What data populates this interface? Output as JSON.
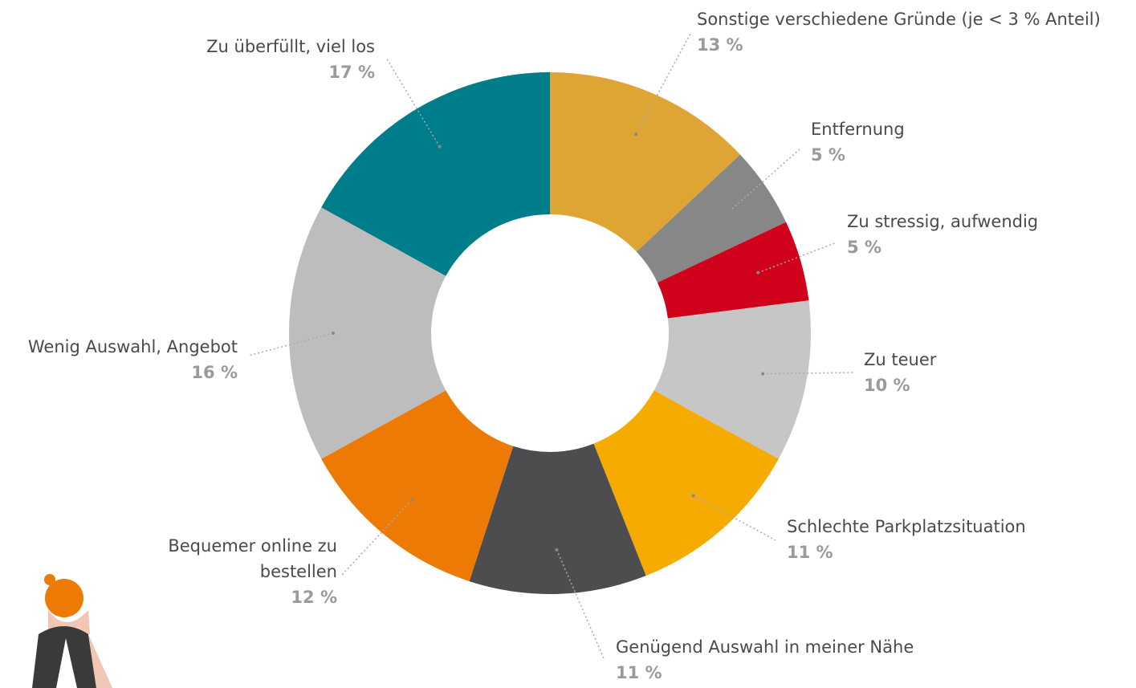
{
  "chart_data": {
    "type": "donut",
    "categories": [
      "Sonstige verschiedene Gründe (je < 3 % Anteil)",
      "Entfernung",
      "Zu stressig, aufwendig",
      "Zu teuer",
      "Schlechte Parkplatzsituation",
      "Genügend Auswahl in meiner Nähe",
      "Bequemer online zu bestellen",
      "Wenig Auswahl, Angebot",
      "Zu überfüllt, viel los"
    ],
    "values": [
      13,
      5,
      5,
      10,
      11,
      11,
      12,
      16,
      17
    ],
    "value_labels": [
      "13 %",
      "5 %",
      "5 %",
      "10 %",
      "11 %",
      "11 %",
      "12 %",
      "16 %",
      "17 %"
    ],
    "colors": [
      "#dea535",
      "#878787",
      "#d0021b",
      "#c6c6c6",
      "#f5ab00",
      "#4d4d4f",
      "#ec7a04",
      "#bdbdbd",
      "#007d8a"
    ]
  }
}
